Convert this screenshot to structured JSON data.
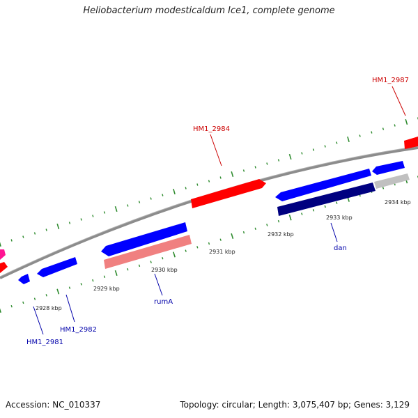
{
  "title": "Heliobacterium modesticaldum Ice1, complete genome",
  "footer": {
    "accession": "Accession: NC_010337",
    "summary": "Topology: circular; Length: 3,075,407 bp; Genes: 3,129"
  },
  "colors": {
    "backbone": "#8c8c8c",
    "tick": "#2e8b2e",
    "forward_gene": "#ff0000",
    "reverse_gene": "#0000ff",
    "dark_gene": "#000080",
    "pink_gene": "#f08080",
    "grey_gene": "#c0c0c0",
    "magenta_gene": "#ff1493",
    "label_red": "#cc0000",
    "label_blue": "#0000aa"
  },
  "kbp_labels": [
    "2928 kbp",
    "2929 kbp",
    "2930 kbp",
    "2931 kbp",
    "2932 kbp",
    "2933 kbp",
    "2934 kbp"
  ],
  "gene_labels": [
    {
      "text": "HM1_2987",
      "color": "red"
    },
    {
      "text": "HM1_2984",
      "color": "red"
    },
    {
      "text": "rumA",
      "color": "blue"
    },
    {
      "text": "dan",
      "color": "blue"
    },
    {
      "text": "HM1_2982",
      "color": "blue"
    },
    {
      "text": "HM1_2981",
      "color": "blue"
    }
  ]
}
